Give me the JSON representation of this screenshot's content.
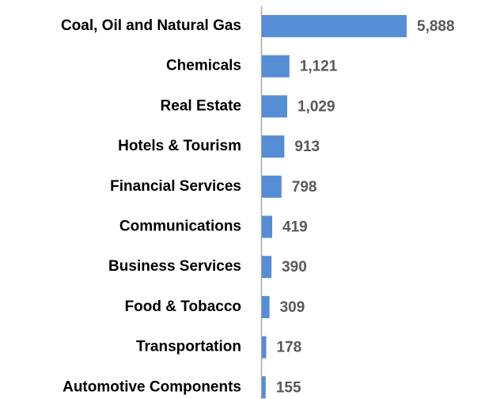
{
  "chart_data": {
    "type": "barh",
    "categories": [
      "Coal, Oil and Natural Gas",
      "Chemicals",
      "Real Estate",
      "Hotels & Tourism",
      "Financial Services",
      "Communications",
      "Business Services",
      "Food & Tobacco",
      "Transportation",
      "Automotive Components"
    ],
    "values": [
      5888,
      1121,
      1029,
      913,
      798,
      419,
      390,
      309,
      178,
      155
    ],
    "value_labels": [
      "5,888",
      "1,121",
      "1,029",
      "913",
      "798",
      "419",
      "390",
      "309",
      "178",
      "155"
    ],
    "color": "#558ed5"
  }
}
